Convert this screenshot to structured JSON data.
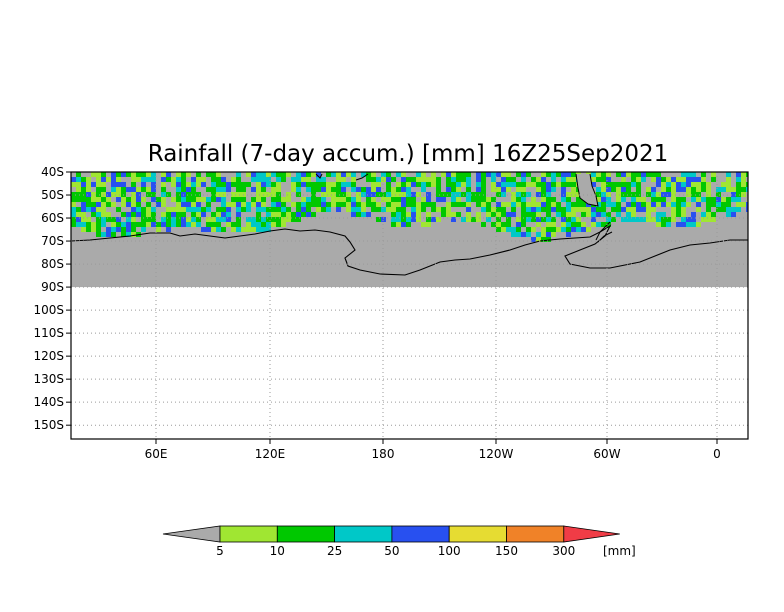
{
  "map": {
    "title": "Rainfall (7-day accum.) [mm] 16Z25Sep2021",
    "lat_labels": [
      "40S",
      "50S",
      "60S",
      "70S",
      "80S",
      "90S",
      "100S",
      "110S",
      "120S",
      "130S",
      "140S",
      "150S"
    ],
    "lon_labels": [
      "60E",
      "120E",
      "180",
      "120W",
      "60W",
      "0"
    ],
    "colors": {
      "no_data": "#aaaaaa",
      "land": "#aaaaaa",
      "coast": "#000000",
      "grid": "#9a9a9a"
    }
  },
  "legend": {
    "unit": "[mm]",
    "labels": [
      "5",
      "10",
      "25",
      "50",
      "100",
      "150",
      "300"
    ],
    "colors": [
      "#aaaaaa",
      "#a0e632",
      "#00c800",
      "#00c8c8",
      "#2850f0",
      "#e6dc32",
      "#f08228",
      "#f03c46"
    ]
  }
}
